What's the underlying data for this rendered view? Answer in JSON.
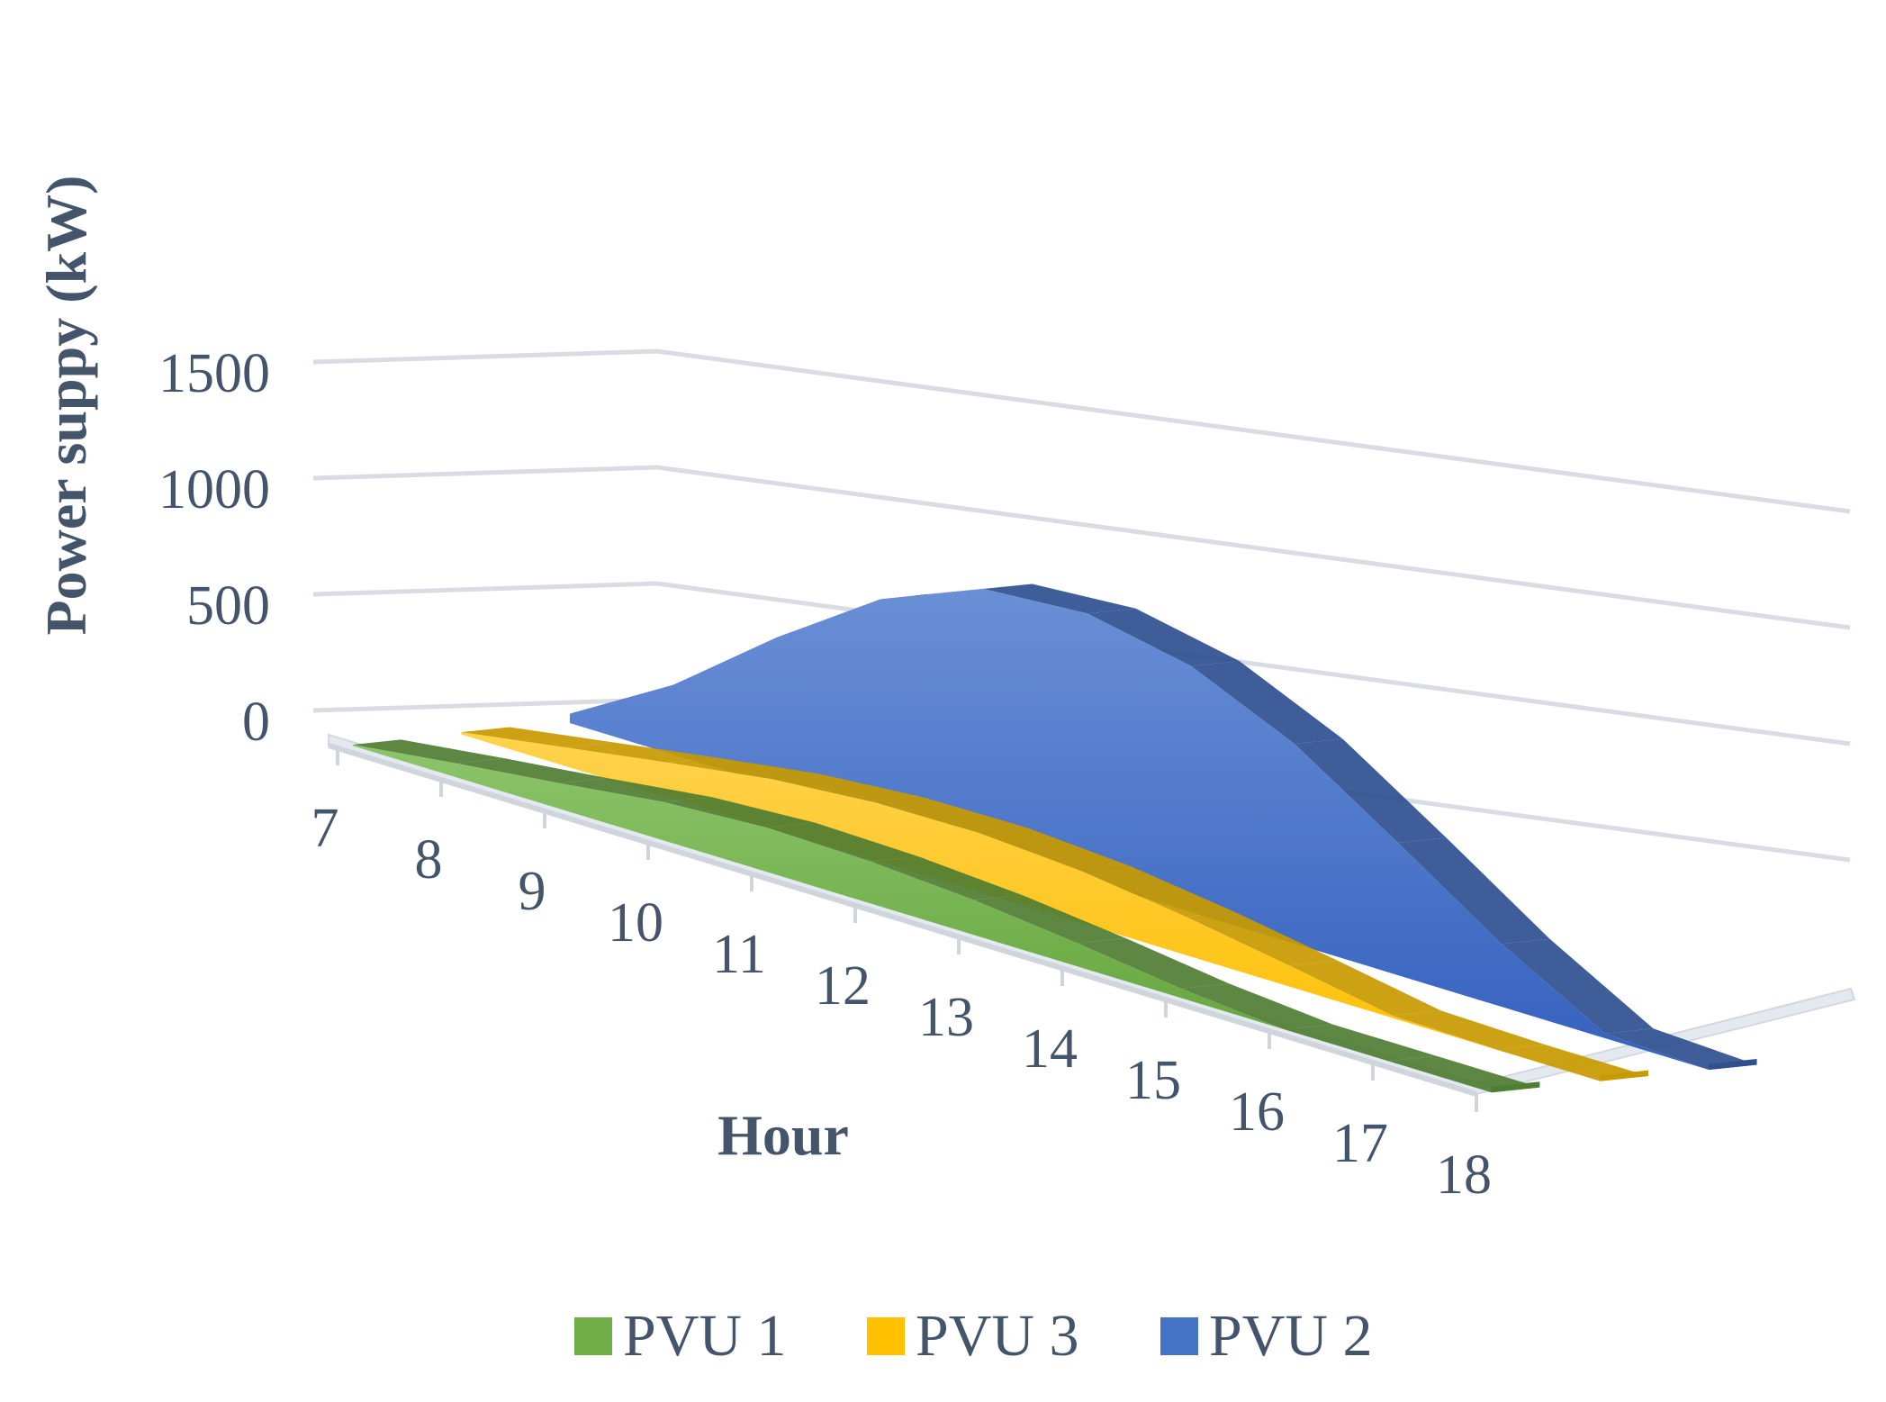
{
  "chart_data": {
    "type": "area",
    "view": "3d",
    "x": [
      7,
      8,
      9,
      10,
      11,
      12,
      13,
      14,
      15,
      16,
      17,
      18
    ],
    "categories": [
      "7",
      "8",
      "9",
      "10",
      "11",
      "12",
      "13",
      "14",
      "15",
      "16",
      "17",
      "18"
    ],
    "xlabel": "Hour",
    "ylabel": "Power suppy (kW)",
    "yticks": [
      "0",
      "500",
      "1000",
      "1500"
    ],
    "ylim": [
      0,
      1500
    ],
    "grid": true,
    "legend_position": "bottom",
    "series": [
      {
        "name": "PVU 1",
        "color": "#70ad47",
        "values": [
          5,
          60,
          110,
          165,
          190,
          180,
          150,
          100,
          40,
          0,
          0,
          0
        ]
      },
      {
        "name": "PVU 3",
        "color": "#ffc000",
        "values": [
          10,
          80,
          150,
          215,
          250,
          255,
          225,
          165,
          90,
          10,
          0,
          0
        ]
      },
      {
        "name": "PVU 2",
        "color": "#4472c4",
        "values": [
          40,
          300,
          640,
          940,
          1120,
          1150,
          1060,
          860,
          570,
          270,
          20,
          0
        ]
      }
    ]
  }
}
